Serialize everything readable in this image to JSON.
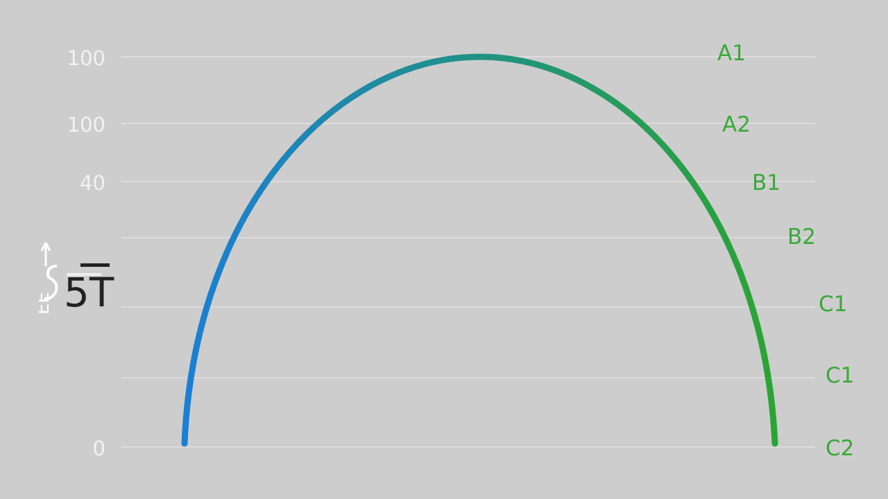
{
  "chart_data": {
    "type": "line",
    "title": "",
    "xlabel": "",
    "ylabel": "",
    "y_tick_labels": [
      "100",
      "100",
      "40",
      "0"
    ],
    "right_labels": [
      "A1",
      "A2",
      "B1",
      "B2",
      "C1",
      "C1",
      "C2"
    ],
    "grid": true,
    "series": [
      {
        "x": [
          0,
          0.5,
          1
        ],
        "y": [
          0,
          100,
          0
        ],
        "shape": "arc",
        "gradient": [
          "#1a7fd6",
          "#2aa532"
        ]
      }
    ]
  },
  "logo": {
    "text": "EST"
  },
  "colors": {
    "background": "#cdcdcd",
    "label_green": "#3aa83a",
    "tick_white": "#f2f2f2"
  }
}
